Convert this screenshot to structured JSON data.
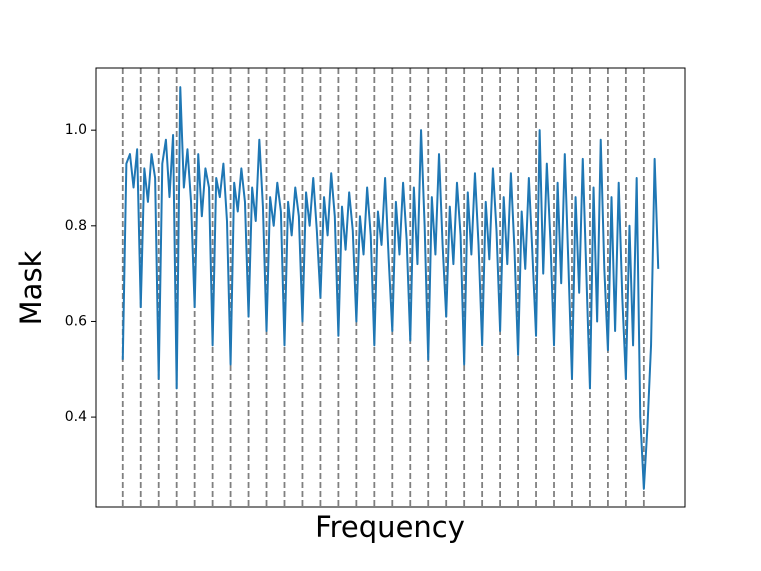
{
  "chart_data": {
    "type": "line",
    "xlabel": "Frequency",
    "ylabel": "Mask",
    "x": [
      0,
      1,
      2,
      3,
      4,
      5,
      6,
      7,
      8,
      9,
      10,
      11,
      12,
      13,
      14,
      15,
      16,
      17,
      18,
      19,
      20,
      21,
      22,
      23,
      24,
      25,
      26,
      27,
      28,
      29,
      30,
      31,
      32,
      33,
      34,
      35,
      36,
      37,
      38,
      39,
      40,
      41,
      42,
      43,
      44,
      45,
      46,
      47,
      48,
      49,
      50,
      51,
      52,
      53,
      54,
      55,
      56,
      57,
      58,
      59,
      60,
      61,
      62,
      63,
      64,
      65,
      66,
      67,
      68,
      69,
      70,
      71,
      72,
      73,
      74,
      75,
      76,
      77,
      78,
      79,
      80,
      81,
      82,
      83,
      84,
      85,
      86,
      87,
      88,
      89,
      90,
      91,
      92,
      93,
      94,
      95,
      96,
      97,
      98,
      99,
      100,
      101,
      102,
      103,
      104,
      105,
      106,
      107,
      108,
      109,
      110,
      111,
      112,
      113,
      114,
      115,
      116,
      117,
      118,
      119,
      120,
      121,
      122,
      123,
      124,
      125,
      126,
      127,
      128,
      129,
      130,
      131,
      132,
      133,
      134,
      135,
      136,
      137,
      138,
      139,
      140,
      141,
      142,
      143,
      144,
      145,
      146,
      147,
      148,
      149
    ],
    "series": [
      {
        "color": "#1f77b4",
        "values": [
          0.52,
          0.93,
          0.95,
          0.88,
          0.96,
          0.63,
          0.92,
          0.85,
          0.95,
          0.9,
          0.48,
          0.93,
          0.98,
          0.86,
          0.99,
          0.46,
          1.09,
          0.88,
          0.96,
          0.85,
          0.63,
          0.95,
          0.82,
          0.92,
          0.88,
          0.55,
          0.9,
          0.86,
          0.93,
          0.81,
          0.51,
          0.89,
          0.83,
          0.92,
          0.85,
          0.61,
          0.88,
          0.81,
          0.98,
          0.84,
          0.58,
          0.86,
          0.8,
          0.89,
          0.83,
          0.55,
          0.85,
          0.78,
          0.88,
          0.82,
          0.6,
          0.87,
          0.8,
          0.9,
          0.79,
          0.65,
          0.86,
          0.78,
          0.91,
          0.82,
          0.57,
          0.84,
          0.75,
          0.87,
          0.79,
          0.6,
          0.82,
          0.74,
          0.88,
          0.78,
          0.55,
          0.83,
          0.76,
          0.9,
          0.73,
          0.58,
          0.85,
          0.74,
          0.89,
          0.77,
          0.56,
          0.88,
          0.72,
          1.0,
          0.8,
          0.52,
          0.86,
          0.74,
          0.95,
          0.76,
          0.61,
          0.84,
          0.72,
          0.89,
          0.78,
          0.51,
          0.87,
          0.74,
          0.91,
          0.76,
          0.55,
          0.85,
          0.73,
          0.92,
          0.79,
          0.58,
          0.86,
          0.72,
          0.91,
          0.75,
          0.53,
          0.83,
          0.71,
          0.9,
          0.74,
          0.57,
          1.0,
          0.7,
          0.93,
          0.77,
          0.55,
          0.89,
          0.68,
          0.95,
          0.72,
          0.48,
          0.86,
          0.66,
          0.94,
          0.7,
          0.46,
          0.88,
          0.6,
          0.98,
          0.71,
          0.54,
          0.86,
          0.58,
          0.89,
          0.65,
          0.48,
          0.8,
          0.55,
          0.9,
          0.4,
          0.25,
          0.38,
          0.55,
          0.94,
          0.71
        ]
      }
    ],
    "vlines": [
      0,
      5,
      10,
      15,
      20,
      25,
      30,
      35,
      40,
      45,
      50,
      55,
      60,
      65,
      70,
      75,
      80,
      85,
      90,
      95,
      100,
      105,
      110,
      115,
      120,
      125,
      130,
      135,
      140,
      145
    ],
    "vline_color": "#808080",
    "xlim": [
      -7.45,
      156.45
    ],
    "ylim": [
      0.212,
      1.13
    ],
    "yticks": [
      0.4,
      0.6,
      0.8,
      {
        "value": 1,
        "label": "1.0"
      }
    ]
  }
}
